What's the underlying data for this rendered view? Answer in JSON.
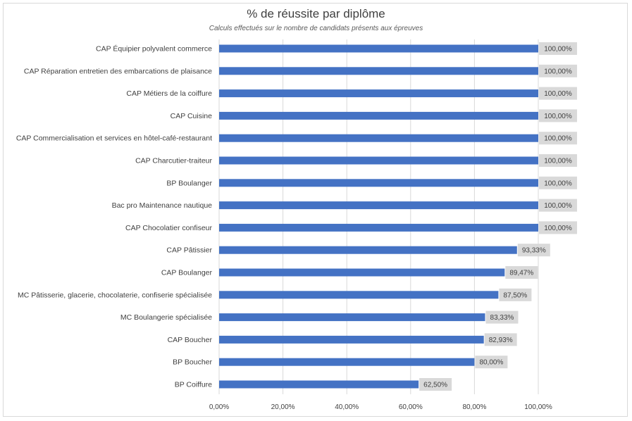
{
  "chart_data": {
    "type": "bar",
    "orientation": "horizontal",
    "title": "% de réussite par diplôme",
    "subtitle": "Calculs effectués sur le nombre de candidats présents aux épreuves",
    "categories": [
      "CAP Équipier polyvalent commerce",
      "CAP Réparation entretien des embarcations de plaisance",
      "CAP Métiers de la coiffure",
      "CAP Cuisine",
      "CAP Commercialisation et services en hôtel-café-restaurant",
      "CAP Charcutier-traiteur",
      "BP Boulanger",
      "Bac pro Maintenance nautique",
      "CAP Chocolatier confiseur",
      "CAP Pâtissier",
      "CAP Boulanger",
      "MC Pâtisserie, glacerie, chocolaterie, confiserie spécialisée",
      "MC Boulangerie spécialisée",
      "CAP Boucher",
      "BP Boucher",
      "BP Coiffure"
    ],
    "values": [
      100,
      100,
      100,
      100,
      100,
      100,
      100,
      100,
      100,
      93.33,
      89.47,
      87.5,
      83.33,
      82.93,
      80,
      62.5
    ],
    "data_labels": [
      "100,00%",
      "100,00%",
      "100,00%",
      "100,00%",
      "100,00%",
      "100,00%",
      "100,00%",
      "100,00%",
      "100,00%",
      "93,33%",
      "89,47%",
      "87,50%",
      "83,33%",
      "82,93%",
      "80,00%",
      "62,50%"
    ],
    "xlim": [
      0,
      100
    ],
    "x_ticks": [
      0,
      20,
      40,
      60,
      80,
      100
    ],
    "x_tick_labels": [
      "0,00%",
      "20,00%",
      "40,00%",
      "60,00%",
      "80,00%",
      "100,00%"
    ],
    "xlabel": "",
    "ylabel": "",
    "grid": "vertical",
    "legend": "none",
    "colors": {
      "bar": "#4472c4",
      "label_bg": "#d9d9d9",
      "grid": "#d9d9d9",
      "text": "#404040"
    }
  }
}
